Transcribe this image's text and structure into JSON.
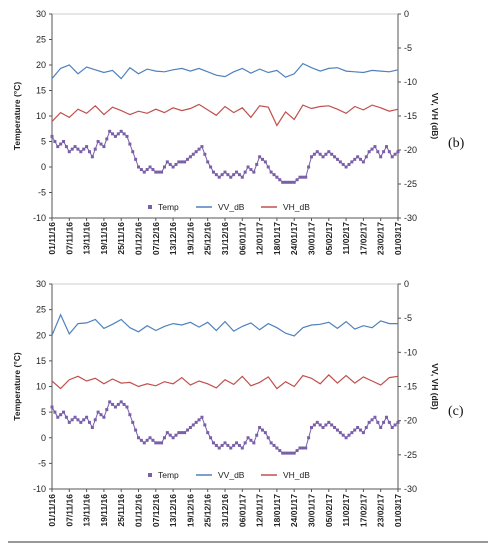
{
  "chart_data": [
    {
      "panel": "b",
      "type": "line",
      "ylabel_left": "Temperature (°C)",
      "ylabel_right": "VV, VH (dB)",
      "ylim_left": [
        -10,
        30
      ],
      "ylim_right": [
        -30,
        0
      ],
      "yticks_left": [
        "-10",
        "-5",
        "0",
        "5",
        "10",
        "15",
        "20",
        "25",
        "30"
      ],
      "yticks_right": [
        "-30",
        "-25",
        "-20",
        "-15",
        "-10",
        "-5",
        "0"
      ],
      "xticks": [
        "01/11/16",
        "07/11/16",
        "13/11/16",
        "19/11/16",
        "25/11/16",
        "01/12/16",
        "07/12/16",
        "13/12/16",
        "19/12/16",
        "25/12/16",
        "31/12/16",
        "06/01/17",
        "12/01/17",
        "18/01/17",
        "24/01/17",
        "30/01/17",
        "05/02/17",
        "11/02/17",
        "17/02/17",
        "23/02/17",
        "01/03/17"
      ],
      "x_range": [
        "2016-11-01",
        "2017-03-01"
      ],
      "legend": [
        "Temp",
        "VV_dB",
        "VH_dB"
      ],
      "legend_position": "bottom",
      "series": [
        {
          "name": "Temp",
          "axis": "left",
          "color": "#7a5fa8",
          "x": [
            "2016-11-01",
            "2016-11-03",
            "2016-11-05",
            "2016-11-07",
            "2016-11-09",
            "2016-11-11",
            "2016-11-13",
            "2016-11-15",
            "2016-11-17",
            "2016-11-19",
            "2016-11-21",
            "2016-11-23",
            "2016-11-25",
            "2016-11-27",
            "2016-11-29",
            "2016-12-01",
            "2016-12-03",
            "2016-12-05",
            "2016-12-07",
            "2016-12-09",
            "2016-12-11",
            "2016-12-13",
            "2016-12-15",
            "2016-12-17",
            "2016-12-19",
            "2016-12-21",
            "2016-12-23",
            "2016-12-25",
            "2016-12-27",
            "2016-12-29",
            "2016-12-31",
            "2017-01-02",
            "2017-01-04",
            "2017-01-06",
            "2017-01-08",
            "2017-01-10",
            "2017-01-12",
            "2017-01-14",
            "2017-01-16",
            "2017-01-18",
            "2017-01-20",
            "2017-01-22",
            "2017-01-24",
            "2017-01-26",
            "2017-01-28",
            "2017-01-30",
            "2017-02-01",
            "2017-02-03",
            "2017-02-05",
            "2017-02-07",
            "2017-02-09",
            "2017-02-11",
            "2017-02-13",
            "2017-02-15",
            "2017-02-17",
            "2017-02-19",
            "2017-02-21",
            "2017-02-23",
            "2017-02-25",
            "2017-02-27",
            "2017-03-01"
          ],
          "y": [
            6,
            4,
            5,
            3,
            4,
            3,
            4,
            2,
            5,
            4,
            7,
            6,
            7,
            6,
            3,
            0,
            -1,
            0,
            -1,
            -1,
            1,
            0,
            1,
            1,
            2,
            3,
            4,
            1,
            -1,
            -2,
            -1,
            -2,
            -1,
            -2,
            0,
            -1,
            2,
            1,
            -1,
            -2,
            -3,
            -3,
            -3,
            -2,
            -2,
            2,
            3,
            2,
            3,
            2,
            1,
            0,
            1,
            2,
            1,
            3,
            4,
            2,
            4,
            2,
            3
          ]
        },
        {
          "name": "VV_dB",
          "axis": "right",
          "color": "#4f81bd",
          "x": [
            "2016-11-01",
            "2016-11-04",
            "2016-11-07",
            "2016-11-10",
            "2016-11-13",
            "2016-11-16",
            "2016-11-19",
            "2016-11-22",
            "2016-11-25",
            "2016-11-28",
            "2016-12-01",
            "2016-12-04",
            "2016-12-07",
            "2016-12-10",
            "2016-12-13",
            "2016-12-16",
            "2016-12-19",
            "2016-12-22",
            "2016-12-25",
            "2016-12-28",
            "2016-12-31",
            "2017-01-03",
            "2017-01-06",
            "2017-01-09",
            "2017-01-12",
            "2017-01-15",
            "2017-01-18",
            "2017-01-21",
            "2017-01-24",
            "2017-01-27",
            "2017-01-30",
            "2017-02-02",
            "2017-02-05",
            "2017-02-08",
            "2017-02-11",
            "2017-02-14",
            "2017-02-17",
            "2017-02-20",
            "2017-02-23",
            "2017-02-26",
            "2017-03-01"
          ],
          "y": [
            -9.5,
            -8.0,
            -7.5,
            -8.8,
            -7.8,
            -8.2,
            -8.6,
            -8.3,
            -9.5,
            -7.9,
            -8.8,
            -8.1,
            -8.4,
            -8.5,
            -8.2,
            -8.0,
            -8.4,
            -8.0,
            -8.5,
            -9.0,
            -9.2,
            -8.5,
            -8.0,
            -8.7,
            -8.1,
            -8.6,
            -8.3,
            -9.3,
            -8.8,
            -7.3,
            -7.9,
            -8.4,
            -8.0,
            -7.9,
            -8.4,
            -8.5,
            -8.6,
            -8.3,
            -8.4,
            -8.5,
            -8.2
          ]
        },
        {
          "name": "VH_dB",
          "axis": "right",
          "color": "#c0504d",
          "x": [
            "2016-11-01",
            "2016-11-04",
            "2016-11-07",
            "2016-11-10",
            "2016-11-13",
            "2016-11-16",
            "2016-11-19",
            "2016-11-22",
            "2016-11-25",
            "2016-11-28",
            "2016-12-01",
            "2016-12-04",
            "2016-12-07",
            "2016-12-10",
            "2016-12-13",
            "2016-12-16",
            "2016-12-19",
            "2016-12-22",
            "2016-12-25",
            "2016-12-28",
            "2016-12-31",
            "2017-01-03",
            "2017-01-06",
            "2017-01-09",
            "2017-01-12",
            "2017-01-15",
            "2017-01-18",
            "2017-01-21",
            "2017-01-24",
            "2017-01-27",
            "2017-01-30",
            "2017-02-02",
            "2017-02-05",
            "2017-02-08",
            "2017-02-11",
            "2017-02-14",
            "2017-02-17",
            "2017-02-20",
            "2017-02-23",
            "2017-02-26",
            "2017-03-01"
          ],
          "y": [
            -15.8,
            -14.5,
            -15.2,
            -14.0,
            -14.6,
            -13.5,
            -14.8,
            -13.7,
            -14.2,
            -14.8,
            -14.3,
            -14.6,
            -14.0,
            -14.5,
            -13.8,
            -14.2,
            -13.9,
            -13.3,
            -14.1,
            -14.9,
            -13.6,
            -14.5,
            -13.8,
            -15.2,
            -13.5,
            -13.7,
            -16.4,
            -14.4,
            -15.5,
            -13.4,
            -13.9,
            -13.6,
            -13.5,
            -14.0,
            -14.6,
            -13.6,
            -14.1,
            -13.4,
            -13.8,
            -14.3,
            -14.0
          ]
        }
      ]
    },
    {
      "panel": "c",
      "type": "line",
      "ylabel_left": "Temperature (°C)",
      "ylabel_right": "VV, VH (dB)",
      "ylim_left": [
        -10,
        30
      ],
      "ylim_right": [
        -30,
        0
      ],
      "yticks_left": [
        "-10",
        "-5",
        "0",
        "5",
        "10",
        "15",
        "20",
        "25",
        "30"
      ],
      "yticks_right": [
        "-30",
        "-25",
        "-20",
        "-15",
        "-10",
        "-5",
        "0"
      ],
      "xticks": [
        "01/11/16",
        "07/11/16",
        "13/11/16",
        "19/11/16",
        "25/11/16",
        "01/12/16",
        "07/12/16",
        "13/12/16",
        "19/12/16",
        "25/12/16",
        "31/12/16",
        "06/01/17",
        "12/01/17",
        "18/01/17",
        "24/01/17",
        "30/01/17",
        "05/02/17",
        "11/02/17",
        "17/02/17",
        "23/02/17",
        "01/03/17"
      ],
      "x_range": [
        "2016-11-01",
        "2017-03-01"
      ],
      "legend": [
        "Temp",
        "VV_dB",
        "VH_dB"
      ],
      "legend_position": "bottom",
      "series": [
        {
          "name": "Temp",
          "axis": "left",
          "color": "#7a5fa8",
          "x": [
            "2016-11-01",
            "2016-11-03",
            "2016-11-05",
            "2016-11-07",
            "2016-11-09",
            "2016-11-11",
            "2016-11-13",
            "2016-11-15",
            "2016-11-17",
            "2016-11-19",
            "2016-11-21",
            "2016-11-23",
            "2016-11-25",
            "2016-11-27",
            "2016-11-29",
            "2016-12-01",
            "2016-12-03",
            "2016-12-05",
            "2016-12-07",
            "2016-12-09",
            "2016-12-11",
            "2016-12-13",
            "2016-12-15",
            "2016-12-17",
            "2016-12-19",
            "2016-12-21",
            "2016-12-23",
            "2016-12-25",
            "2016-12-27",
            "2016-12-29",
            "2016-12-31",
            "2017-01-02",
            "2017-01-04",
            "2017-01-06",
            "2017-01-08",
            "2017-01-10",
            "2017-01-12",
            "2017-01-14",
            "2017-01-16",
            "2017-01-18",
            "2017-01-20",
            "2017-01-22",
            "2017-01-24",
            "2017-01-26",
            "2017-01-28",
            "2017-01-30",
            "2017-02-01",
            "2017-02-03",
            "2017-02-05",
            "2017-02-07",
            "2017-02-09",
            "2017-02-11",
            "2017-02-13",
            "2017-02-15",
            "2017-02-17",
            "2017-02-19",
            "2017-02-21",
            "2017-02-23",
            "2017-02-25",
            "2017-02-27",
            "2017-03-01"
          ],
          "y": [
            6,
            4,
            5,
            3,
            4,
            3,
            4,
            2,
            5,
            4,
            7,
            6,
            7,
            6,
            3,
            0,
            -1,
            0,
            -1,
            -1,
            1,
            0,
            1,
            1,
            2,
            3,
            4,
            1,
            -1,
            -2,
            -1,
            -2,
            -1,
            -2,
            0,
            -1,
            2,
            1,
            -1,
            -2,
            -3,
            -3,
            -3,
            -2,
            -2,
            2,
            3,
            2,
            3,
            2,
            1,
            0,
            1,
            2,
            1,
            3,
            4,
            2,
            4,
            2,
            3
          ]
        },
        {
          "name": "VV_dB",
          "axis": "right",
          "color": "#4f81bd",
          "x": [
            "2016-11-01",
            "2016-11-04",
            "2016-11-07",
            "2016-11-10",
            "2016-11-13",
            "2016-11-16",
            "2016-11-19",
            "2016-11-22",
            "2016-11-25",
            "2016-11-28",
            "2016-12-01",
            "2016-12-04",
            "2016-12-07",
            "2016-12-10",
            "2016-12-13",
            "2016-12-16",
            "2016-12-19",
            "2016-12-22",
            "2016-12-25",
            "2016-12-28",
            "2016-12-31",
            "2017-01-03",
            "2017-01-06",
            "2017-01-09",
            "2017-01-12",
            "2017-01-15",
            "2017-01-18",
            "2017-01-21",
            "2017-01-24",
            "2017-01-27",
            "2017-01-30",
            "2017-02-02",
            "2017-02-05",
            "2017-02-08",
            "2017-02-11",
            "2017-02-14",
            "2017-02-17",
            "2017-02-20",
            "2017-02-23",
            "2017-02-26",
            "2017-03-01"
          ],
          "y": [
            -7.5,
            -4.5,
            -7.3,
            -5.8,
            -5.7,
            -5.2,
            -6.5,
            -5.9,
            -5.2,
            -6.4,
            -7.0,
            -6.1,
            -6.8,
            -6.2,
            -5.8,
            -6.0,
            -5.6,
            -6.3,
            -5.6,
            -6.8,
            -5.5,
            -6.9,
            -6.2,
            -5.7,
            -6.7,
            -5.8,
            -6.4,
            -7.2,
            -7.6,
            -6.4,
            -6.0,
            -5.9,
            -5.6,
            -6.5,
            -5.5,
            -6.6,
            -6.1,
            -6.4,
            -5.4,
            -5.8,
            -5.8
          ]
        },
        {
          "name": "VH_dB",
          "axis": "right",
          "color": "#c0504d",
          "x": [
            "2016-11-01",
            "2016-11-04",
            "2016-11-07",
            "2016-11-10",
            "2016-11-13",
            "2016-11-16",
            "2016-11-19",
            "2016-11-22",
            "2016-11-25",
            "2016-11-28",
            "2016-12-01",
            "2016-12-04",
            "2016-12-07",
            "2016-12-10",
            "2016-12-13",
            "2016-12-16",
            "2016-12-19",
            "2016-12-22",
            "2016-12-25",
            "2016-12-28",
            "2016-12-31",
            "2017-01-03",
            "2017-01-06",
            "2017-01-09",
            "2017-01-12",
            "2017-01-15",
            "2017-01-18",
            "2017-01-21",
            "2017-01-24",
            "2017-01-27",
            "2017-01-30",
            "2017-02-02",
            "2017-02-05",
            "2017-02-08",
            "2017-02-11",
            "2017-02-14",
            "2017-02-17",
            "2017-02-20",
            "2017-02-23",
            "2017-02-26",
            "2017-03-01"
          ],
          "y": [
            -14.2,
            -15.3,
            -14.0,
            -13.5,
            -14.2,
            -13.8,
            -14.6,
            -13.9,
            -14.5,
            -14.4,
            -15.0,
            -14.6,
            -14.9,
            -14.3,
            -14.6,
            -13.7,
            -14.8,
            -14.2,
            -14.6,
            -15.2,
            -14.0,
            -14.7,
            -13.5,
            -14.9,
            -14.4,
            -13.6,
            -15.3,
            -14.3,
            -15.0,
            -13.4,
            -13.8,
            -14.6,
            -13.3,
            -14.5,
            -13.4,
            -14.5,
            -13.6,
            -14.2,
            -14.8,
            -13.7,
            -13.5
          ]
        }
      ]
    }
  ]
}
